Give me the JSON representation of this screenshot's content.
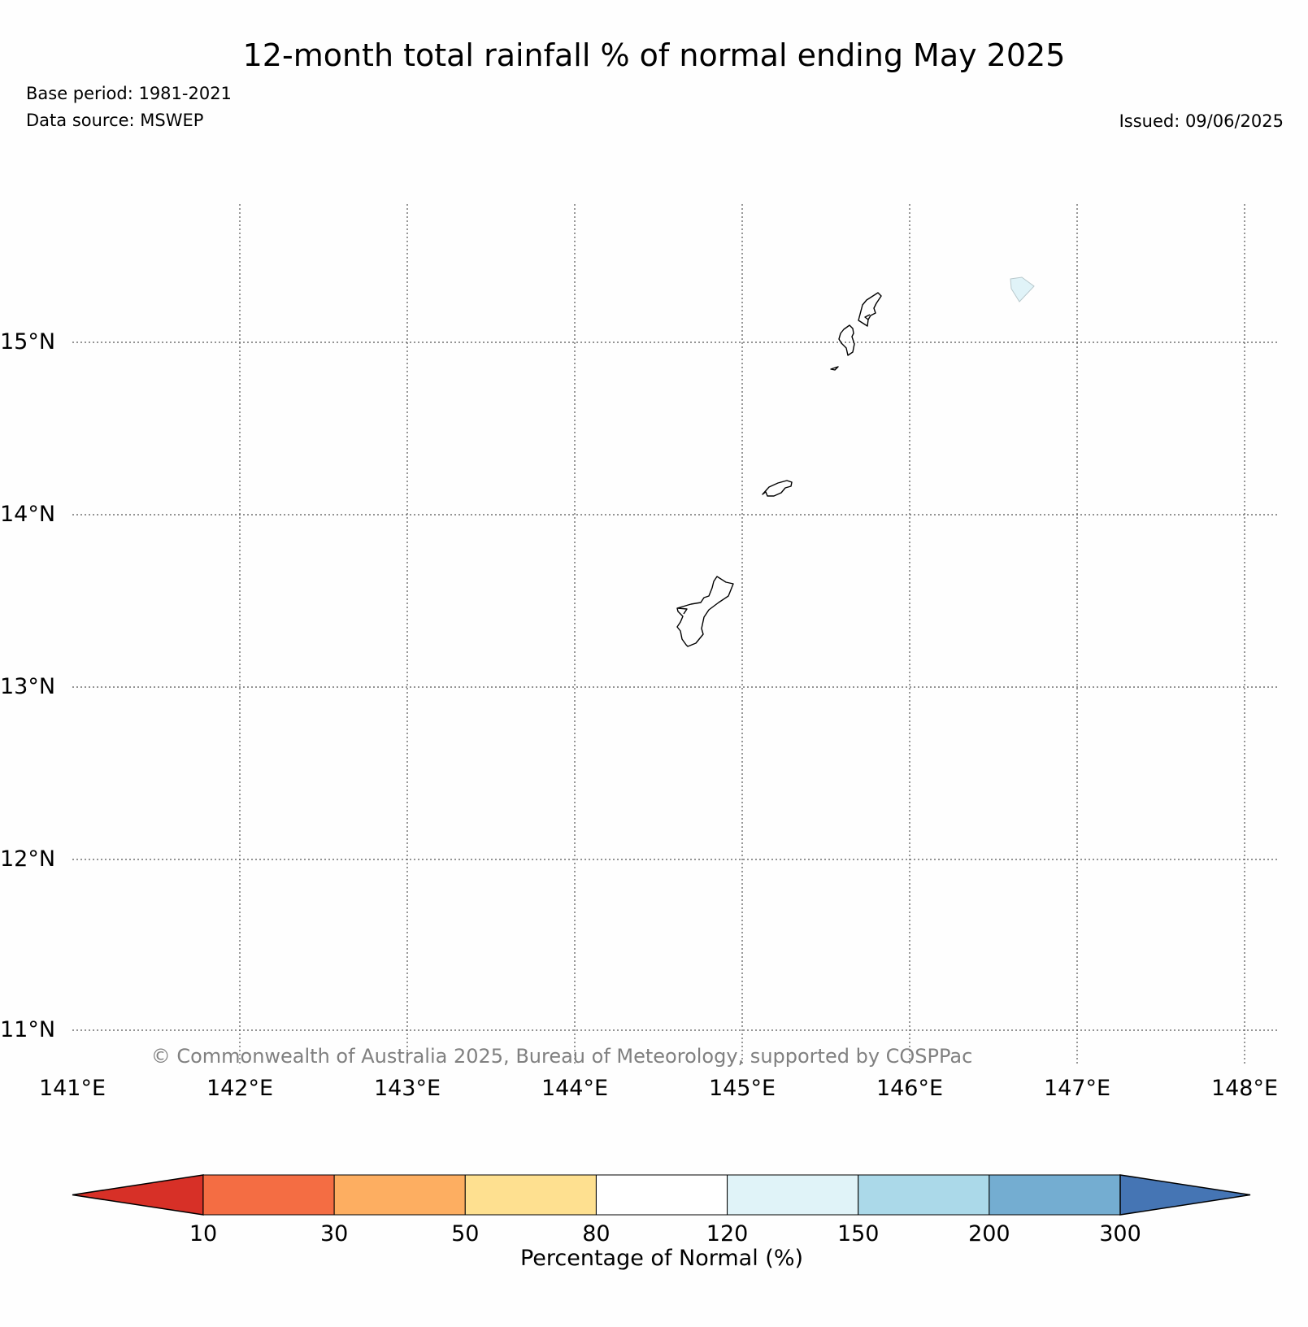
{
  "header": {
    "title": "12-month total rainfall % of normal ending May 2025",
    "base_period": "Base period: 1981-2021",
    "data_source": "Data source: MSWEP",
    "issued": "Issued: 09/06/2025"
  },
  "map": {
    "lon_ticks": [
      "141°E",
      "142°E",
      "143°E",
      "144°E",
      "145°E",
      "146°E",
      "147°E",
      "148°E"
    ],
    "lat_ticks": [
      "15°N",
      "14°N",
      "13°N",
      "12°N",
      "11°N"
    ],
    "grid": "dotted",
    "islands": [
      "Guam",
      "Rota",
      "Tinian",
      "Saipan"
    ],
    "copyright": "© Commonwealth of Australia 2025, Bureau of Meteorology, supported by COSPPac"
  },
  "colorbar": {
    "title": "Percentage of Normal (%)",
    "tick_labels": [
      "10",
      "30",
      "50",
      "80",
      "120",
      "150",
      "200",
      "300"
    ],
    "colors": [
      "#d73027",
      "#f46d43",
      "#fdae61",
      "#fee090",
      "#ffffff",
      "#e0f3f8",
      "#abd9e9",
      "#74add1",
      "#4575b4"
    ],
    "extend": "both"
  },
  "colors": {
    "grid": "#555555",
    "coast": "#000000",
    "shaded_cell": "#e0f3f8"
  }
}
